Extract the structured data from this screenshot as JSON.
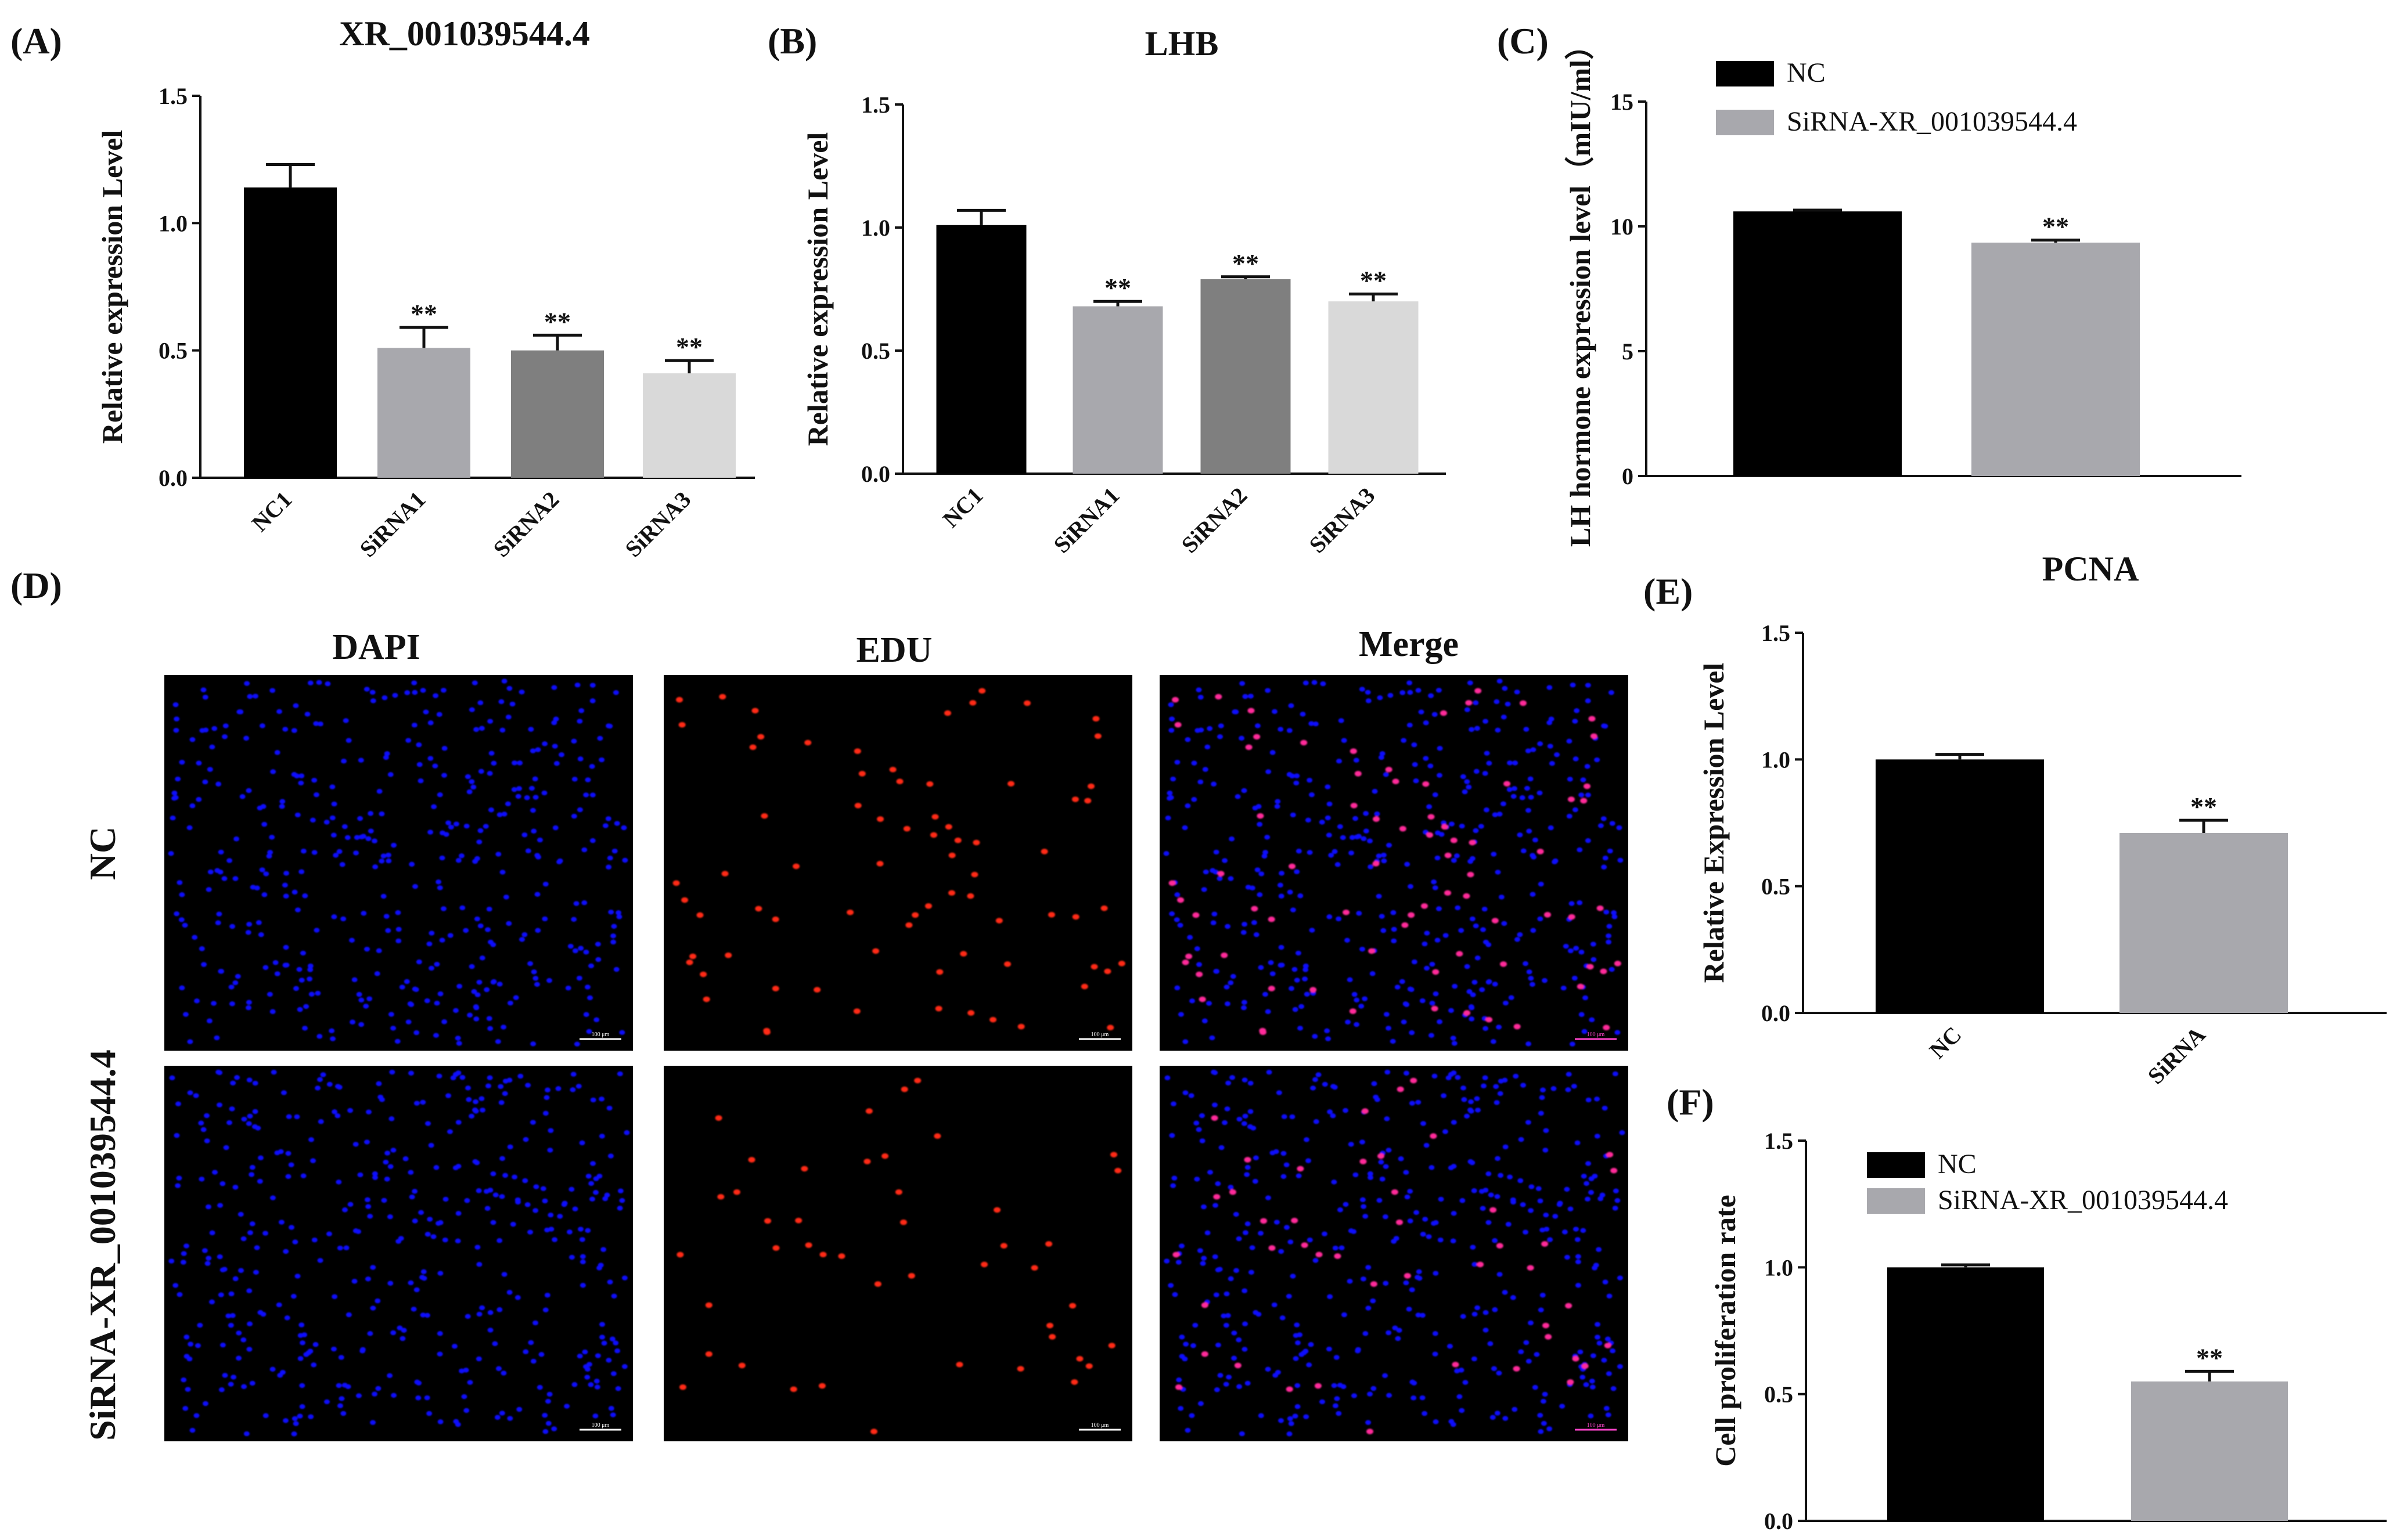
{
  "colors": {
    "black": "#000000",
    "gray1": "#a8a8ad",
    "gray2": "#7f7f7f",
    "gray3": "#d9d9d9",
    "dapi": "#1010ff",
    "edu": "#ff2a18",
    "merge": "#ff2a9a",
    "bg": "#000000"
  },
  "panels": {
    "A": {
      "label": "(A)"
    },
    "B": {
      "label": "(B)"
    },
    "C": {
      "label": "(C)"
    },
    "D": {
      "label": "(D)"
    },
    "E": {
      "label": "(E)"
    },
    "F": {
      "label": "(F)"
    }
  },
  "chart_data": [
    {
      "id": "A",
      "type": "bar",
      "title": "XR_001039544.4",
      "ylabel": "Relative expression Level",
      "xlabel": "",
      "ylim": [
        0,
        1.5
      ],
      "yticks": [
        "0.0",
        "0.5",
        "1.0",
        "1.5"
      ],
      "categories": [
        "NC1",
        "SiRNA1",
        "SiRNA2",
        "SiRNA3"
      ],
      "values": [
        1.14,
        0.51,
        0.5,
        0.41
      ],
      "errors": [
        0.09,
        0.08,
        0.06,
        0.05
      ],
      "significance": [
        "",
        "**",
        "**",
        "**"
      ],
      "colors": [
        "black",
        "gray1",
        "gray2",
        "gray3"
      ]
    },
    {
      "id": "B",
      "type": "bar",
      "title": "LHB",
      "ylabel": "Relative expression Level",
      "xlabel": "",
      "ylim": [
        0,
        1.5
      ],
      "yticks": [
        "0.0",
        "0.5",
        "1.0",
        "1.5"
      ],
      "categories": [
        "NC1",
        "SiRNA1",
        "SiRNA2",
        "SiRNA3"
      ],
      "values": [
        1.01,
        0.68,
        0.79,
        0.7
      ],
      "errors": [
        0.06,
        0.02,
        0.01,
        0.03
      ],
      "significance": [
        "",
        "**",
        "**",
        "**"
      ],
      "colors": [
        "black",
        "gray1",
        "gray2",
        "gray3"
      ]
    },
    {
      "id": "C",
      "type": "bar",
      "title": "",
      "ylabel": "LH hormone expression level（mIU/ml）",
      "xlabel": "",
      "ylim": [
        0,
        15
      ],
      "yticks": [
        "0",
        "5",
        "10",
        "15"
      ],
      "categories": [
        "NC",
        "SiRNA-XR_001039544.4"
      ],
      "values": [
        10.6,
        9.35
      ],
      "errors": [
        0.05,
        0.1
      ],
      "significance": [
        "",
        "**"
      ],
      "colors": [
        "black",
        "gray1"
      ],
      "legend": [
        "NC",
        "SiRNA-XR_001039544.4"
      ]
    },
    {
      "id": "E",
      "type": "bar",
      "title": "PCNA",
      "ylabel": "Relative Expression Level",
      "xlabel": "",
      "ylim": [
        0,
        1.5
      ],
      "yticks": [
        "0.0",
        "0.5",
        "1.0",
        "1.5"
      ],
      "categories": [
        "NC",
        "SiRNA"
      ],
      "values": [
        1.0,
        0.71
      ],
      "errors": [
        0.02,
        0.05
      ],
      "significance": [
        "",
        "**"
      ],
      "colors": [
        "black",
        "gray1"
      ]
    },
    {
      "id": "F",
      "type": "bar",
      "title": "",
      "ylabel": "Cell proliferation rate",
      "xlabel": "",
      "ylim": [
        0,
        1.5
      ],
      "yticks": [
        "0.0",
        "0.5",
        "1.0",
        "1.5"
      ],
      "categories": [
        "NC",
        "SiRNA-XR_001039544.4"
      ],
      "values": [
        1.0,
        0.55
      ],
      "errors": [
        0.01,
        0.04
      ],
      "significance": [
        "",
        "**"
      ],
      "colors": [
        "black",
        "gray1"
      ],
      "legend": [
        "NC",
        "SiRNA-XR_001039544.4"
      ]
    }
  ],
  "microscopy": {
    "columns": [
      "DAPI",
      "EDU",
      "Merge"
    ],
    "rows": [
      "NC",
      "SiRNA-XR_001039544.4"
    ],
    "scale_bar": "100 μm"
  }
}
